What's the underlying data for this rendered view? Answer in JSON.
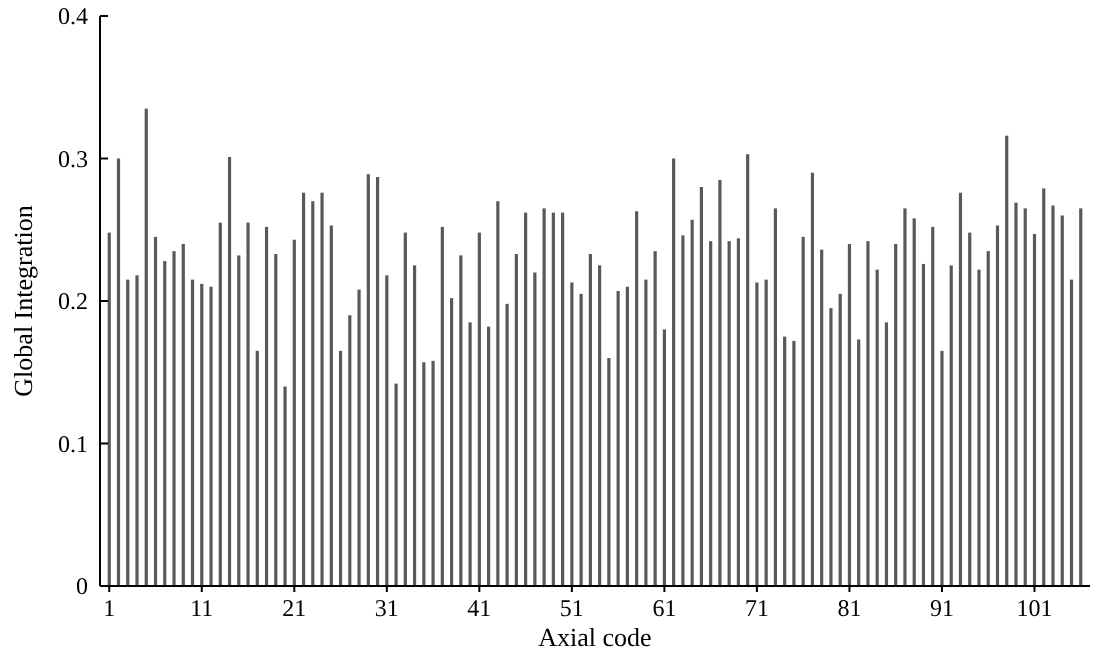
{
  "chart_data": {
    "type": "bar",
    "xlabel": "Axial code",
    "ylabel": "Global Integration",
    "color": "#595959",
    "x": [
      1,
      2,
      3,
      4,
      5,
      6,
      7,
      8,
      9,
      10,
      11,
      12,
      13,
      14,
      15,
      16,
      17,
      18,
      19,
      20,
      21,
      22,
      23,
      24,
      25,
      26,
      27,
      28,
      29,
      30,
      31,
      32,
      33,
      34,
      35,
      36,
      37,
      38,
      39,
      40,
      41,
      42,
      43,
      44,
      45,
      46,
      47,
      48,
      49,
      50,
      51,
      52,
      53,
      54,
      55,
      56,
      57,
      58,
      59,
      60,
      61,
      62,
      63,
      64,
      65,
      66,
      67,
      68,
      69,
      70,
      71,
      72,
      73,
      74,
      75,
      76,
      77,
      78,
      79,
      80,
      81,
      82,
      83,
      84,
      85,
      86,
      87,
      88,
      89,
      90,
      91,
      92,
      93,
      94,
      95,
      96,
      97,
      98,
      99,
      100,
      101,
      102,
      103,
      104,
      105,
      106
    ],
    "values": [
      0.248,
      0.3,
      0.215,
      0.218,
      0.335,
      0.245,
      0.228,
      0.235,
      0.24,
      0.215,
      0.212,
      0.21,
      0.255,
      0.301,
      0.232,
      0.255,
      0.165,
      0.252,
      0.233,
      0.14,
      0.243,
      0.276,
      0.27,
      0.276,
      0.253,
      0.165,
      0.19,
      0.208,
      0.289,
      0.287,
      0.218,
      0.142,
      0.248,
      0.225,
      0.157,
      0.158,
      0.252,
      0.202,
      0.232,
      0.185,
      0.248,
      0.182,
      0.27,
      0.198,
      0.233,
      0.262,
      0.22,
      0.265,
      0.262,
      0.262,
      0.213,
      0.205,
      0.233,
      0.225,
      0.16,
      0.207,
      0.21,
      0.263,
      0.215,
      0.235,
      0.18,
      0.3,
      0.246,
      0.257,
      0.28,
      0.242,
      0.285,
      0.242,
      0.244,
      0.303,
      0.213,
      0.215,
      0.265,
      0.175,
      0.172,
      0.245,
      0.29,
      0.236,
      0.195,
      0.205,
      0.24,
      0.173,
      0.242,
      0.222,
      0.185,
      0.24,
      0.265,
      0.258,
      0.226,
      0.252,
      0.165,
      0.225,
      0.276,
      0.248,
      0.222,
      0.235,
      0.253,
      0.316,
      0.269,
      0.265,
      0.247,
      0.279,
      0.267,
      0.26,
      0.215,
      0.265
    ],
    "xlim": [
      0,
      107
    ],
    "xticks": [
      1,
      11,
      21,
      31,
      41,
      51,
      61,
      71,
      81,
      91,
      101
    ],
    "ylim": [
      0,
      0.4
    ],
    "yticks": [
      0,
      0.1,
      0.2,
      0.3,
      0.4
    ],
    "grid": false
  }
}
